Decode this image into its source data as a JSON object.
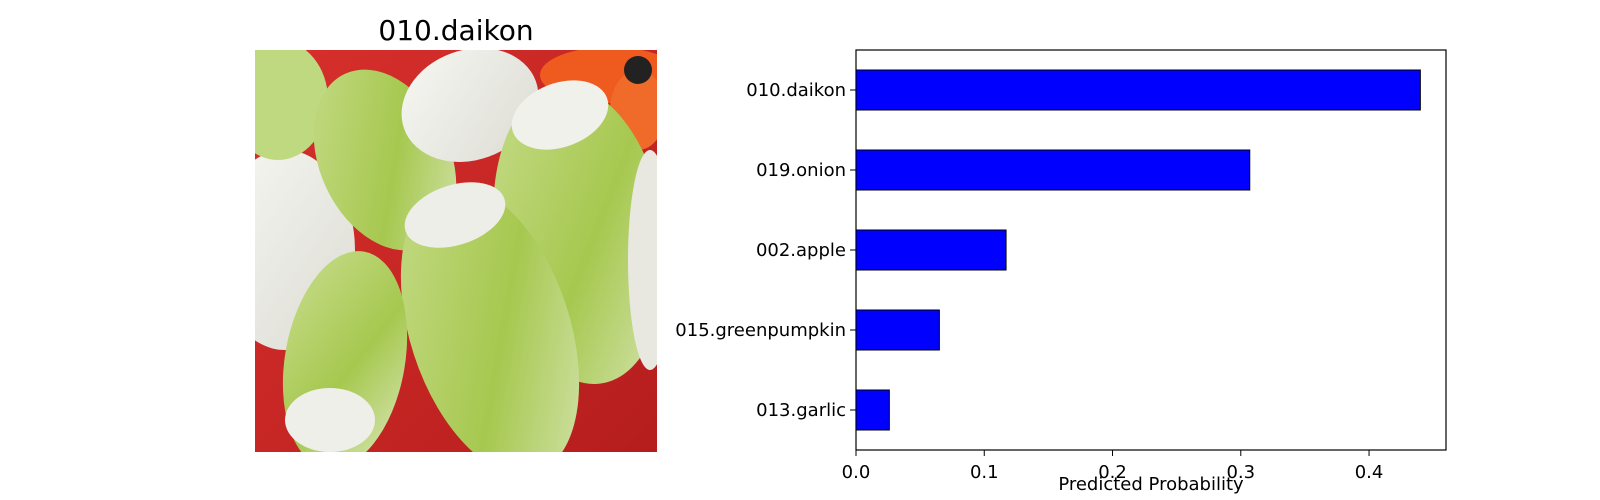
{
  "image_panel": {
    "title": "010.daikon",
    "subject": "daikon radish photo"
  },
  "chart_data": {
    "type": "bar",
    "orientation": "horizontal",
    "categories": [
      "010.daikon",
      "019.onion",
      "002.apple",
      "015.greenpumpkin",
      "013.garlic"
    ],
    "values": [
      0.44,
      0.307,
      0.117,
      0.065,
      0.026
    ],
    "title": "",
    "xlabel": "Predicted Probability",
    "ylabel": "",
    "xlim": [
      0,
      0.46
    ],
    "xticks": [
      "0.0",
      "0.1",
      "0.2",
      "0.3",
      "0.4"
    ],
    "grid": false,
    "legend": "none",
    "bar_color": "#0000ff",
    "bar_edge_color": "#000000"
  }
}
